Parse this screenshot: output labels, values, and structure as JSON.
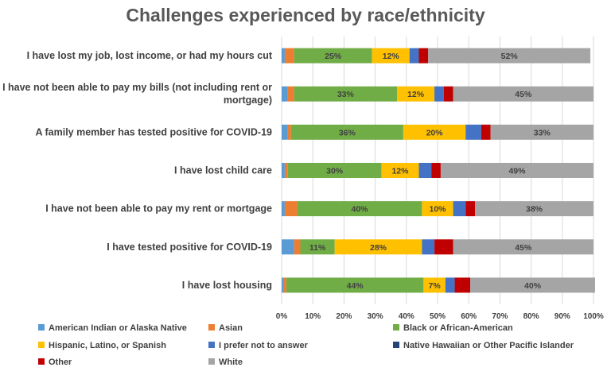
{
  "chart_data": {
    "type": "bar",
    "orientation": "horizontal",
    "stacked": "percent",
    "title": "Challenges experienced by race/ethnicity",
    "xlabel": "",
    "ylabel": "",
    "xlim": [
      0,
      100
    ],
    "x_ticks": [
      "0%",
      "10%",
      "20%",
      "30%",
      "40%",
      "50%",
      "60%",
      "70%",
      "80%",
      "90%",
      "100%"
    ],
    "grid": "vertical",
    "legend_position": "bottom",
    "categories": [
      [
        "I have lost my job, lost income, or had my hours cut"
      ],
      [
        "I have not been able to pay my bills (not including rent or",
        "mortgage)"
      ],
      [
        "A family member has tested positive for COVID-19"
      ],
      [
        "I have lost child care"
      ],
      [
        "I have not been able to pay my rent or mortgage"
      ],
      [
        "I have tested positive for COVID-19"
      ],
      [
        "I have lost housing"
      ]
    ],
    "series": [
      {
        "name": "American Indian or Alaska Native",
        "color": "#5B9BD5",
        "values": [
          1,
          2,
          2,
          1,
          1,
          4,
          0.5
        ]
      },
      {
        "name": "Asian",
        "color": "#ED7D31",
        "values": [
          3,
          2,
          1,
          1,
          4,
          2,
          1
        ]
      },
      {
        "name": "Black or African-American",
        "color": "#70AD47",
        "values": [
          25,
          33,
          36,
          30,
          40,
          11,
          44
        ]
      },
      {
        "name": "Hispanic, Latino, or Spanish",
        "color": "#FFC000",
        "values": [
          12,
          12,
          20,
          12,
          10,
          28,
          7
        ]
      },
      {
        "name": "I prefer not to answer",
        "color": "#4472C4",
        "values": [
          3,
          3,
          5,
          4,
          4,
          4,
          3
        ]
      },
      {
        "name": "Native Hawaiian or Other Pacific Islander",
        "color": "#264478",
        "values": [
          0,
          0,
          0,
          0,
          0,
          0,
          0
        ]
      },
      {
        "name": "Other",
        "color": "#C00000",
        "values": [
          3,
          3,
          3,
          3,
          3,
          6,
          5
        ]
      },
      {
        "name": "White",
        "color": "#A5A5A5",
        "values": [
          52,
          45,
          33,
          49,
          38,
          45,
          40
        ]
      }
    ],
    "data_labels": [
      [
        "25%",
        "12%",
        "52%"
      ],
      [
        "33%",
        "12%",
        "45%"
      ],
      [
        "36%",
        "20%",
        "33%"
      ],
      [
        "30%",
        "12%",
        "49%"
      ],
      [
        "40%",
        "10%",
        "38%"
      ],
      [
        "11%",
        "28%",
        "45%"
      ],
      [
        "44%",
        "7%",
        "40%"
      ]
    ],
    "labeled_series": [
      2,
      3,
      7
    ]
  }
}
